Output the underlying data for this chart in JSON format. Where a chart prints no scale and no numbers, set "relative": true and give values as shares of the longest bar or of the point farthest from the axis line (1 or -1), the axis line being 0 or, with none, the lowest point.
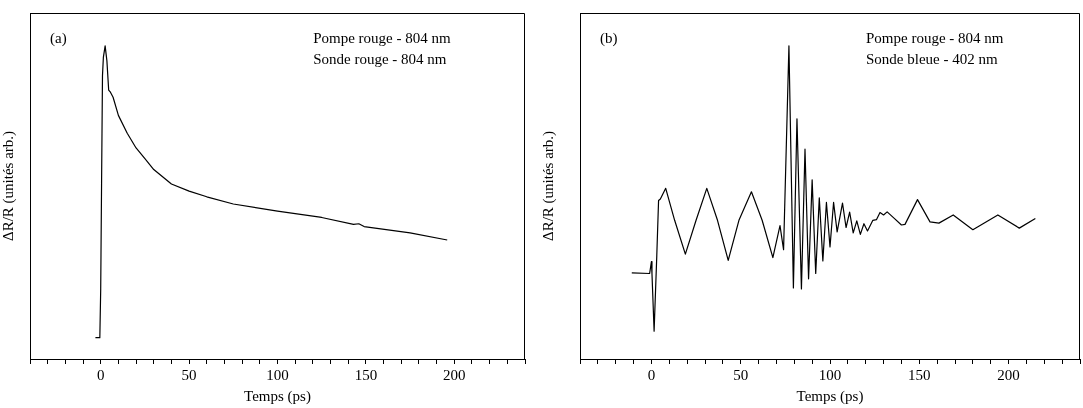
{
  "chart_data": [
    {
      "type": "line",
      "xlabel": "Temps (ps)",
      "ylabel": "ΔR/R (unités arb.)",
      "annotations": [
        "(a)",
        "Pompe rouge - 804 nm",
        "Sonde rouge - 804 nm"
      ],
      "relative": true,
      "grid": false,
      "marker": "none",
      "line_style": "solid",
      "color": "#000000",
      "xlim": [
        -40,
        240
      ],
      "xticks": [
        {
          "value": -40,
          "label": null
        },
        {
          "value": -30,
          "label": null
        },
        {
          "value": -20,
          "label": null
        },
        {
          "value": -10,
          "label": null
        },
        0,
        {
          "value": 10,
          "label": null
        },
        {
          "value": 20,
          "label": null
        },
        {
          "value": 30,
          "label": null
        },
        {
          "value": 40,
          "label": null
        },
        50,
        {
          "value": 60,
          "label": null
        },
        {
          "value": 70,
          "label": null
        },
        {
          "value": 80,
          "label": null
        },
        {
          "value": 90,
          "label": null
        },
        100,
        {
          "value": 110,
          "label": null
        },
        {
          "value": 120,
          "label": null
        },
        {
          "value": 130,
          "label": null
        },
        {
          "value": 140,
          "label": null
        },
        150,
        {
          "value": 160,
          "label": null
        },
        {
          "value": 170,
          "label": null
        },
        {
          "value": 180,
          "label": null
        },
        {
          "value": 190,
          "label": null
        },
        200,
        {
          "value": 210,
          "label": null
        },
        {
          "value": 220,
          "label": null
        },
        {
          "value": 230,
          "label": null
        },
        {
          "value": 240,
          "label": null
        }
      ],
      "x": [
        -3,
        -0.5,
        0,
        0.5,
        1,
        1.5,
        2.5,
        3.5,
        4.5,
        5.5,
        7,
        10,
        15,
        20,
        25,
        30,
        40,
        50,
        60,
        75,
        100,
        125,
        143,
        146,
        149,
        175,
        196
      ],
      "values": [
        0.068,
        0.068,
        0.224,
        0.57,
        0.905,
        0.963,
        1.0,
        0.952,
        0.859,
        0.852,
        0.836,
        0.778,
        0.721,
        0.674,
        0.64,
        0.605,
        0.559,
        0.536,
        0.518,
        0.495,
        0.472,
        0.452,
        0.43,
        0.432,
        0.423,
        0.403,
        0.38
      ]
    },
    {
      "type": "line",
      "xlabel": "Temps (ps)",
      "ylabel": "ΔR/R (unités arb.)",
      "annotations": [
        "(b)",
        "Pompe rouge - 804 nm",
        "Sonde bleue - 402 nm"
      ],
      "relative": true,
      "grid": false,
      "marker": "none",
      "line_style": "solid",
      "color": "#000000",
      "xlim": [
        -40,
        240
      ],
      "xticks": [
        {
          "value": -40,
          "label": null
        },
        {
          "value": -30,
          "label": null
        },
        {
          "value": -20,
          "label": null
        },
        {
          "value": -10,
          "label": null
        },
        0,
        {
          "value": 10,
          "label": null
        },
        {
          "value": 20,
          "label": null
        },
        {
          "value": 30,
          "label": null
        },
        {
          "value": 40,
          "label": null
        },
        50,
        {
          "value": 60,
          "label": null
        },
        {
          "value": 70,
          "label": null
        },
        {
          "value": 80,
          "label": null
        },
        {
          "value": 90,
          "label": null
        },
        100,
        {
          "value": 110,
          "label": null
        },
        {
          "value": 120,
          "label": null
        },
        {
          "value": 130,
          "label": null
        },
        {
          "value": 140,
          "label": null
        },
        150,
        {
          "value": 160,
          "label": null
        },
        {
          "value": 170,
          "label": null
        },
        {
          "value": 180,
          "label": null
        },
        {
          "value": 190,
          "label": null
        },
        200,
        {
          "value": 210,
          "label": null
        },
        {
          "value": 220,
          "label": null
        },
        {
          "value": 230,
          "label": null
        },
        {
          "value": 240,
          "label": null
        }
      ],
      "x": [
        -11,
        -1,
        0,
        0.3,
        1.5,
        3,
        4,
        5,
        8,
        13,
        19,
        25,
        31,
        37,
        43,
        49,
        56,
        62,
        68,
        72,
        74,
        77,
        79.5,
        81.5,
        84,
        86,
        88,
        90,
        92,
        94,
        96,
        98,
        100,
        102,
        104,
        107,
        109,
        111,
        113,
        115,
        117,
        119,
        121,
        124,
        126,
        128,
        130,
        132,
        136,
        140,
        142,
        149,
        156,
        161,
        169,
        180,
        194,
        206,
        215
      ],
      "values": [
        0.275,
        0.273,
        0.311,
        0.273,
        0.089,
        0.33,
        0.506,
        0.511,
        0.545,
        0.443,
        0.335,
        0.443,
        0.545,
        0.443,
        0.315,
        0.443,
        0.534,
        0.443,
        0.324,
        0.426,
        0.349,
        1.0,
        0.227,
        0.767,
        0.224,
        0.67,
        0.256,
        0.572,
        0.273,
        0.515,
        0.313,
        0.5,
        0.358,
        0.5,
        0.406,
        0.498,
        0.42,
        0.469,
        0.403,
        0.441,
        0.398,
        0.432,
        0.409,
        0.443,
        0.445,
        0.468,
        0.46,
        0.47,
        0.449,
        0.428,
        0.43,
        0.509,
        0.438,
        0.434,
        0.46,
        0.413,
        0.46,
        0.418,
        0.449
      ]
    }
  ]
}
